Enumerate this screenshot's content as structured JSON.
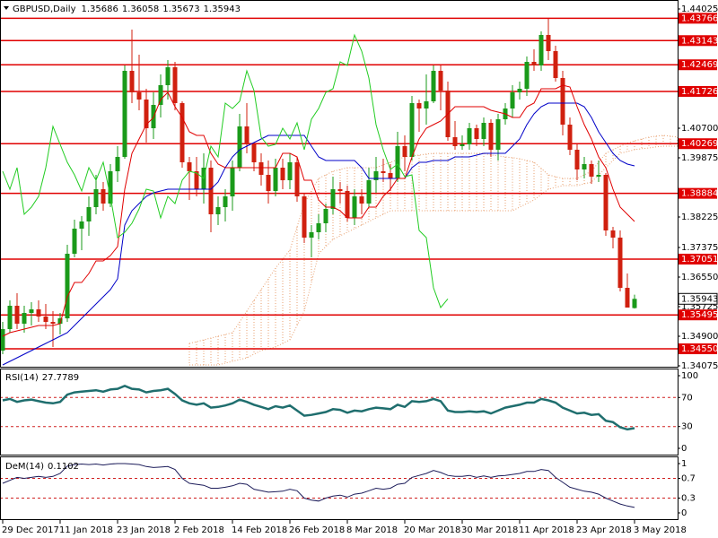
{
  "chart_data": [
    {
      "type": "candlestick",
      "title": "GBPUSD,Daily",
      "categories": [
        "29 Dec 2017",
        null,
        null,
        null,
        null,
        null,
        null,
        null,
        "11 Jan 2018",
        null,
        null,
        null,
        null,
        null,
        null,
        null,
        "23 Jan 2018",
        null,
        null,
        null,
        null,
        null,
        null,
        null,
        "2 Feb 2018",
        null,
        null,
        null,
        null,
        null,
        null,
        null,
        "14 Feb 2018",
        null,
        null,
        null,
        null,
        null,
        null,
        null,
        "26 Feb 2018",
        null,
        null,
        null,
        null,
        null,
        null,
        null,
        "8 Mar 2018",
        null,
        null,
        null,
        null,
        null,
        null,
        null,
        "20 Mar 2018",
        null,
        null,
        null,
        null,
        null,
        null,
        null,
        "30 Mar 2018",
        null,
        null,
        null,
        null,
        null,
        null,
        null,
        "11 Apr 2018",
        null,
        null,
        null,
        null,
        null,
        null,
        null,
        "23 Apr 2018",
        null,
        null,
        null,
        null,
        null,
        null,
        null,
        "3 May 2018"
      ],
      "open": [
        1.345,
        1.351,
        1.3575,
        1.3525,
        1.3555,
        1.3565,
        1.3545,
        1.353,
        1.3525,
        1.354,
        1.372,
        1.379,
        1.381,
        1.385,
        1.39,
        1.386,
        1.395,
        1.399,
        1.423,
        1.417,
        1.415,
        1.407,
        1.4135,
        1.419,
        1.424,
        1.414,
        1.3975,
        1.395,
        1.39,
        1.396,
        1.383,
        1.385,
        1.388,
        1.396,
        1.4075,
        1.4025,
        1.3975,
        1.394,
        1.3895,
        1.396,
        1.3925,
        1.3975,
        1.388,
        1.3765,
        1.378,
        1.3805,
        1.3845,
        1.39,
        1.3895,
        1.382,
        1.388,
        1.386,
        1.3925,
        1.395,
        1.3945,
        1.393,
        1.402,
        1.399,
        1.414,
        1.4125,
        1.4145,
        1.423,
        1.4175,
        1.4045,
        1.402,
        1.4025,
        1.407,
        1.404,
        1.4085,
        1.401,
        1.4095,
        1.4125,
        1.417,
        1.418,
        1.4255,
        1.4245,
        1.433,
        1.4285,
        1.421,
        1.408,
        1.401,
        1.3955,
        1.397,
        1.3935,
        1.394,
        1.3785,
        1.3765,
        1.3625,
        1.35686
      ],
      "high": [
        1.353,
        1.359,
        1.361,
        1.3575,
        1.3585,
        1.359,
        1.358,
        1.356,
        1.3555,
        1.3745,
        1.3815,
        1.3825,
        1.388,
        1.394,
        1.392,
        1.397,
        1.402,
        1.4245,
        1.4345,
        1.4275,
        1.418,
        1.417,
        1.422,
        1.426,
        1.4255,
        1.4145,
        1.399,
        1.399,
        1.4,
        1.398,
        1.388,
        1.39,
        1.398,
        1.411,
        1.414,
        1.403,
        1.4,
        1.398,
        1.3985,
        1.3985,
        1.4,
        1.399,
        1.389,
        1.38,
        1.383,
        1.386,
        1.3935,
        1.392,
        1.391,
        1.39,
        1.39,
        1.396,
        1.399,
        1.3985,
        1.397,
        1.406,
        1.405,
        1.416,
        1.415,
        1.422,
        1.4245,
        1.4245,
        1.42,
        1.409,
        1.405,
        1.4085,
        1.408,
        1.41,
        1.4095,
        1.411,
        1.414,
        1.419,
        1.42,
        1.427,
        1.429,
        1.434,
        1.4375,
        1.43,
        1.423,
        1.41,
        1.4025,
        1.399,
        1.398,
        1.398,
        1.3945,
        1.3795,
        1.3785,
        1.3665,
        1.36058
      ],
      "low": [
        1.344,
        1.35,
        1.351,
        1.35,
        1.352,
        1.353,
        1.351,
        1.346,
        1.3495,
        1.353,
        1.371,
        1.373,
        1.377,
        1.383,
        1.384,
        1.385,
        1.392,
        1.3985,
        1.414,
        1.412,
        1.403,
        1.404,
        1.41,
        1.415,
        1.412,
        1.396,
        1.387,
        1.388,
        1.386,
        1.378,
        1.38,
        1.381,
        1.384,
        1.395,
        1.4,
        1.395,
        1.391,
        1.386,
        1.388,
        1.39,
        1.39,
        1.3865,
        1.375,
        1.371,
        1.376,
        1.378,
        1.383,
        1.386,
        1.381,
        1.38,
        1.383,
        1.385,
        1.389,
        1.392,
        1.3895,
        1.392,
        1.395,
        1.398,
        1.406,
        1.408,
        1.414,
        1.412,
        1.4035,
        1.401,
        1.401,
        1.401,
        1.402,
        1.402,
        1.399,
        1.398,
        1.408,
        1.41,
        1.415,
        1.416,
        1.423,
        1.423,
        1.426,
        1.42,
        1.405,
        1.3995,
        1.3925,
        1.393,
        1.3915,
        1.392,
        1.377,
        1.3735,
        1.3615,
        1.357,
        1.35673
      ],
      "close": [
        1.351,
        1.3575,
        1.3525,
        1.3555,
        1.3565,
        1.3545,
        1.353,
        1.3525,
        1.354,
        1.372,
        1.379,
        1.381,
        1.385,
        1.39,
        1.386,
        1.395,
        1.399,
        1.423,
        1.417,
        1.415,
        1.407,
        1.4135,
        1.419,
        1.424,
        1.414,
        1.3975,
        1.395,
        1.39,
        1.396,
        1.383,
        1.385,
        1.388,
        1.396,
        1.4075,
        1.4025,
        1.3975,
        1.394,
        1.3895,
        1.396,
        1.3925,
        1.3975,
        1.388,
        1.3765,
        1.378,
        1.3805,
        1.3845,
        1.39,
        1.3895,
        1.382,
        1.388,
        1.386,
        1.3925,
        1.395,
        1.3945,
        1.393,
        1.402,
        1.399,
        1.414,
        1.4125,
        1.4145,
        1.423,
        1.4175,
        1.4045,
        1.402,
        1.4025,
        1.407,
        1.404,
        1.4085,
        1.401,
        1.4095,
        1.4125,
        1.417,
        1.418,
        1.4255,
        1.4245,
        1.433,
        1.4285,
        1.421,
        1.408,
        1.401,
        1.3955,
        1.397,
        1.3935,
        1.394,
        1.3785,
        1.3765,
        1.3625,
        1.357,
        1.35943
      ],
      "up_color": "#1a9a1a",
      "down_color": "#d0200f",
      "ylim": [
        1.34025,
        1.44275
      ],
      "yticks": [
        1.44025,
        {
          "value": 1.407,
          "label": "1.40700"
        },
        1.39875,
        1.38225,
        1.37375,
        {
          "value": 1.3655,
          "label": "1.36550"
        },
        1.35725,
        {
          "value": 1.349,
          "label": "1.34900"
        },
        1.34075
      ],
      "levels": [
        1.43766,
        1.43143,
        1.42469,
        1.41726,
        1.40269,
        1.38884,
        1.37051,
        1.35495,
        {
          "value": 1.3455,
          "label": "1.34550"
        }
      ],
      "level_color": "#e00000",
      "tenkan": {
        "color": "#e00000",
        "values": [
          1.349,
          1.35,
          1.3505,
          1.351,
          1.3515,
          1.352,
          1.352,
          1.352,
          1.3525,
          1.36,
          1.364,
          1.364,
          1.3665,
          1.37,
          1.37,
          1.3715,
          1.374,
          1.39,
          1.4,
          1.404,
          1.408,
          1.41,
          1.415,
          1.417,
          1.413,
          1.41,
          1.406,
          1.405,
          1.405,
          1.4,
          1.397,
          1.396,
          1.396,
          1.396,
          1.396,
          1.396,
          1.396,
          1.396,
          1.396,
          1.4,
          1.4,
          1.399,
          1.3925,
          1.3925,
          1.387,
          1.385,
          1.385,
          1.384,
          1.382,
          1.382,
          1.382,
          1.385,
          1.385,
          1.388,
          1.39,
          1.393,
          1.393,
          1.399,
          1.404,
          1.407,
          1.408,
          1.409,
          1.411,
          1.413,
          1.413,
          1.413,
          1.413,
          1.413,
          1.412,
          1.4115,
          1.411,
          1.41,
          1.41,
          1.413,
          1.414,
          1.418,
          1.418,
          1.418,
          1.419,
          1.4185,
          1.413,
          1.408,
          1.404,
          1.399,
          1.396,
          1.39,
          1.385,
          1.383,
          1.381
        ]
      },
      "kijun": {
        "color": "#0000c8",
        "values": [
          1.341,
          1.342,
          1.343,
          1.344,
          1.345,
          1.346,
          1.347,
          1.348,
          1.349,
          1.35,
          1.352,
          1.354,
          1.356,
          1.358,
          1.36,
          1.362,
          1.365,
          1.38,
          1.384,
          1.386,
          1.388,
          1.389,
          1.3895,
          1.39,
          1.39,
          1.39,
          1.39,
          1.39,
          1.39,
          1.39,
          1.392,
          1.396,
          1.399,
          1.401,
          1.402,
          1.403,
          1.404,
          1.405,
          1.405,
          1.405,
          1.405,
          1.405,
          1.405,
          1.402,
          1.399,
          1.398,
          1.398,
          1.398,
          1.398,
          1.398,
          1.396,
          1.393,
          1.393,
          1.393,
          1.393,
          1.393,
          1.393,
          1.396,
          1.3975,
          1.3975,
          1.398,
          1.398,
          1.398,
          1.399,
          1.399,
          1.399,
          1.3995,
          1.4,
          1.4,
          1.4,
          1.4,
          1.402,
          1.404,
          1.408,
          1.411,
          1.413,
          1.414,
          1.414,
          1.414,
          1.414,
          1.414,
          1.413,
          1.41,
          1.406,
          1.403,
          1.4,
          1.398,
          1.397,
          1.3965
        ]
      },
      "chikou": {
        "color": "#22cc22",
        "shift": 26
      },
      "cloud": {
        "color": "#e8a070",
        "start": 26,
        "span_a": [
          1.347,
          1.3475,
          1.348,
          1.3485,
          1.349,
          1.3495,
          1.35,
          1.353,
          1.356,
          1.359,
          1.362,
          1.365,
          1.368,
          1.3705,
          1.373,
          1.3795,
          1.386,
          1.3895,
          1.393,
          1.394,
          1.395,
          1.3955,
          1.396,
          1.396,
          1.396,
          1.396,
          1.396,
          1.3968,
          1.3975,
          1.3983,
          1.399,
          1.3993,
          1.3995,
          1.3998,
          1.4,
          1.4,
          1.4,
          1.4,
          1.4,
          1.4,
          1.4,
          1.4,
          1.3995,
          1.3993,
          1.399,
          1.3988,
          1.3985,
          1.398,
          1.3975,
          1.3958,
          1.394,
          1.3935,
          1.393,
          1.393,
          1.393,
          1.394,
          1.395,
          1.3975,
          1.4,
          1.401,
          1.402,
          1.4028,
          1.4035,
          1.404,
          1.4045,
          1.4048,
          1.405,
          1.4048,
          1.4045
        ],
        "span_b": [
          1.341,
          1.341,
          1.341,
          1.341,
          1.341,
          1.3415,
          1.342,
          1.3425,
          1.343,
          1.344,
          1.345,
          1.3455,
          1.346,
          1.347,
          1.348,
          1.352,
          1.356,
          1.364,
          1.372,
          1.374,
          1.376,
          1.377,
          1.378,
          1.379,
          1.38,
          1.381,
          1.382,
          1.383,
          1.384,
          1.384,
          1.384,
          1.384,
          1.384,
          1.384,
          1.384,
          1.384,
          1.384,
          1.384,
          1.384,
          1.384,
          1.384,
          1.384,
          1.384,
          1.384,
          1.384,
          1.384,
          1.385,
          1.386,
          1.387,
          1.3885,
          1.39,
          1.3905,
          1.391,
          1.391,
          1.391,
          1.3915,
          1.392,
          1.394,
          1.396,
          1.398,
          1.4,
          1.4005,
          1.401,
          1.4013,
          1.4015,
          1.4018,
          1.402,
          1.402,
          1.402
        ]
      }
    },
    {
      "type": "line",
      "title": "RSI(14)",
      "color": "#1f6e6e",
      "values": [
        66,
        68,
        64,
        66,
        67,
        65,
        63,
        62,
        64,
        74,
        77,
        78,
        79,
        80,
        78,
        81,
        82,
        86,
        82,
        81,
        77,
        79,
        80,
        82,
        75,
        66,
        62,
        60,
        62,
        56,
        57,
        59,
        62,
        67,
        64,
        60,
        57,
        54,
        58,
        56,
        59,
        52,
        45,
        46,
        48,
        50,
        54,
        53,
        49,
        52,
        51,
        54,
        56,
        55,
        54,
        60,
        57,
        65,
        64,
        65,
        68,
        65,
        52,
        50,
        50,
        51,
        50,
        51,
        48,
        52,
        56,
        58,
        60,
        63,
        63,
        68,
        66,
        63,
        56,
        52,
        48,
        49,
        46,
        47,
        38,
        36,
        29,
        26,
        27.7789
      ],
      "ylim": [
        0,
        100
      ],
      "yticks": [
        100,
        70,
        30,
        0
      ],
      "levels": [
        70,
        30
      ]
    },
    {
      "type": "line",
      "title": "DeM(14)",
      "color": "#1c1c5a",
      "values": [
        0.6,
        0.66,
        0.72,
        0.7,
        0.72,
        0.74,
        0.72,
        0.74,
        0.8,
        0.95,
        0.98,
        0.99,
        0.98,
        0.99,
        0.97,
        0.99,
        1,
        1,
        0.99,
        0.98,
        0.94,
        0.92,
        0.93,
        0.94,
        0.88,
        0.7,
        0.6,
        0.58,
        0.56,
        0.5,
        0.5,
        0.52,
        0.55,
        0.6,
        0.58,
        0.48,
        0.45,
        0.42,
        0.43,
        0.44,
        0.48,
        0.45,
        0.3,
        0.26,
        0.24,
        0.3,
        0.34,
        0.36,
        0.32,
        0.38,
        0.4,
        0.45,
        0.5,
        0.48,
        0.5,
        0.58,
        0.6,
        0.72,
        0.76,
        0.8,
        0.86,
        0.82,
        0.76,
        0.74,
        0.74,
        0.76,
        0.72,
        0.75,
        0.72,
        0.75,
        0.76,
        0.78,
        0.8,
        0.84,
        0.84,
        0.88,
        0.86,
        0.72,
        0.62,
        0.52,
        0.48,
        0.44,
        0.42,
        0.38,
        0.3,
        0.24,
        0.18,
        0.14,
        0.1102
      ],
      "ylim": [
        0,
        1
      ],
      "yticks": [
        1,
        0.7,
        0.3,
        0
      ],
      "levels": [
        0.7,
        0.3
      ]
    }
  ]
}
